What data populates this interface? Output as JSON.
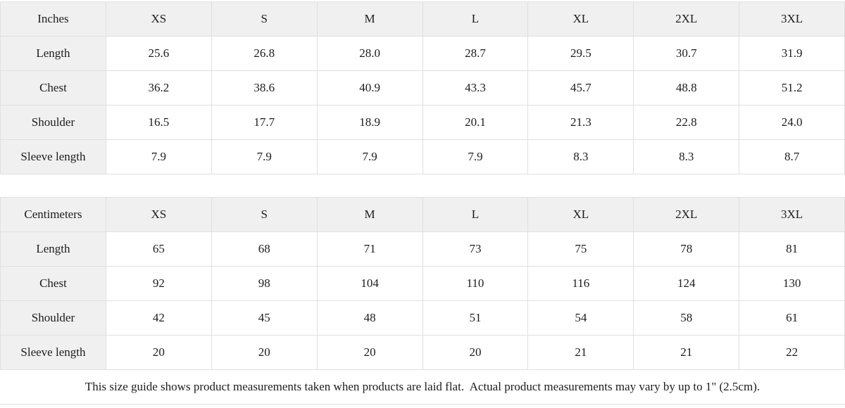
{
  "colors": {
    "header_bg": "#f0f0f0",
    "border": "#e0e0e0",
    "cell_bg": "#ffffff",
    "text": "#1c1c1c"
  },
  "tables": [
    {
      "id": "inches",
      "unit_label": "Inches",
      "size_headers": [
        "XS",
        "S",
        "M",
        "L",
        "XL",
        "2XL",
        "3XL"
      ],
      "rows": [
        {
          "label": "Length",
          "values": [
            "25.6",
            "26.8",
            "28.0",
            "28.7",
            "29.5",
            "30.7",
            "31.9"
          ]
        },
        {
          "label": "Chest",
          "values": [
            "36.2",
            "38.6",
            "40.9",
            "43.3",
            "45.7",
            "48.8",
            "51.2"
          ]
        },
        {
          "label": "Shoulder",
          "values": [
            "16.5",
            "17.7",
            "18.9",
            "20.1",
            "21.3",
            "22.8",
            "24.0"
          ]
        },
        {
          "label": "Sleeve length",
          "values": [
            "7.9",
            "7.9",
            "7.9",
            "7.9",
            "8.3",
            "8.3",
            "8.7"
          ]
        }
      ]
    },
    {
      "id": "centimeters",
      "unit_label": "Centimeters",
      "size_headers": [
        "XS",
        "S",
        "M",
        "L",
        "XL",
        "2XL",
        "3XL"
      ],
      "rows": [
        {
          "label": "Length",
          "values": [
            "65",
            "68",
            "71",
            "73",
            "75",
            "78",
            "81"
          ]
        },
        {
          "label": "Chest",
          "values": [
            "92",
            "98",
            "104",
            "110",
            "116",
            "124",
            "130"
          ]
        },
        {
          "label": "Shoulder",
          "values": [
            "42",
            "45",
            "48",
            "51",
            "54",
            "58",
            "61"
          ]
        },
        {
          "label": "Sleeve length",
          "values": [
            "20",
            "20",
            "20",
            "20",
            "21",
            "21",
            "22"
          ]
        }
      ]
    }
  ],
  "footer": {
    "note": "This size guide shows product measurements taken when products are laid flat.  Actual product measurements may vary by up to 1\" (2.5cm)."
  }
}
